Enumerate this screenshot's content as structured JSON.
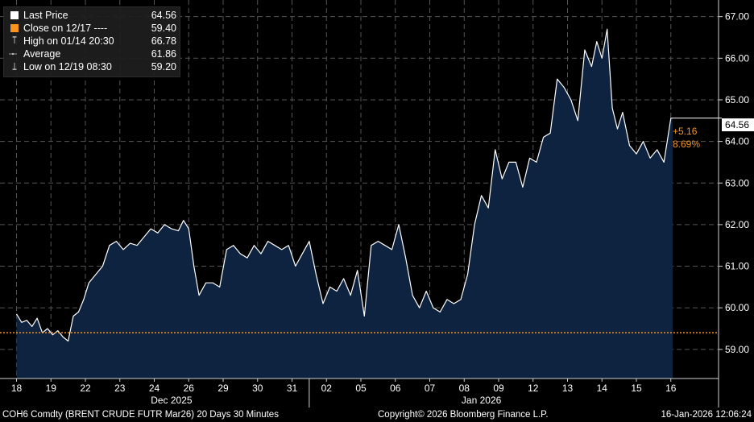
{
  "legend": {
    "items": [
      {
        "label": "Last Price",
        "value": "64.56",
        "color": "#ffffff",
        "marker": "square"
      },
      {
        "label": "Close on 12/17 ----",
        "value": "59.40",
        "color": "#f7941d",
        "marker": "square"
      },
      {
        "label": "High on 01/14 20:30",
        "value": "66.78",
        "color": "#cfcfcf",
        "marker": "high-bar-icon"
      },
      {
        "label": "Average",
        "value": "61.86",
        "color": "#cfcfcf",
        "marker": "average-line-icon"
      },
      {
        "label": "Low on 12/19 08:30",
        "value": "59.20",
        "color": "#cfcfcf",
        "marker": "low-bar-icon"
      }
    ]
  },
  "annotations": {
    "change": "+5.16",
    "change_pct": "8.69%",
    "last_price_tag": "64.56"
  },
  "footer": {
    "ticker": "COH6 Comdty (BRENT CRUDE FUTR  Mar26) 20 Days 30 Minutes",
    "copyright": "Copyright© 2026 Bloomberg Finance L.P.",
    "timestamp": "16-Jan-2026 12:06:24"
  },
  "chart_data": {
    "type": "area",
    "ylim": [
      58.3,
      67.4
    ],
    "yticks": [
      59,
      60,
      61,
      62,
      63,
      64,
      65,
      66,
      67
    ],
    "x_day_labels": [
      "18",
      "19",
      "22",
      "23",
      "24",
      "26",
      "29",
      "30",
      "31",
      "02",
      "05",
      "06",
      "07",
      "08",
      "09",
      "12",
      "13",
      "14",
      "15",
      "16"
    ],
    "month_labels": [
      {
        "label": "Dec 2025",
        "at_day_index": 4.5
      },
      {
        "label": "Jan 2026",
        "at_day_index": 13.5
      }
    ],
    "reference_close": 59.4,
    "last_price": 64.56,
    "colors": {
      "area": "#0d2340",
      "line": "#ffffff",
      "close": "#f7941d",
      "grid": "#555555"
    },
    "day_index": [
      0,
      0.15,
      0.3,
      0.45,
      0.6,
      0.75,
      0.9,
      1.05,
      1.2,
      1.35,
      1.5,
      1.65,
      1.8,
      1.95,
      2.1,
      2.3,
      2.5,
      2.7,
      2.9,
      3.1,
      3.3,
      3.5,
      3.7,
      3.9,
      4.1,
      4.3,
      4.5,
      4.7,
      4.85,
      5.0,
      5.15,
      5.3,
      5.5,
      5.7,
      5.9,
      6.1,
      6.3,
      6.5,
      6.7,
      6.9,
      7.1,
      7.3,
      7.5,
      7.7,
      7.9,
      8.1,
      8.3,
      8.5,
      8.7,
      8.9,
      9.1,
      9.3,
      9.5,
      9.7,
      9.9,
      10.1,
      10.3,
      10.5,
      10.7,
      10.9,
      11.1,
      11.3,
      11.5,
      11.7,
      11.9,
      12.1,
      12.3,
      12.5,
      12.7,
      12.9,
      13.1,
      13.3,
      13.5,
      13.7,
      13.9,
      14.1,
      14.3,
      14.5,
      14.7,
      14.9,
      15.1,
      15.3,
      15.5,
      15.7,
      15.9,
      16.1,
      16.3,
      16.5,
      16.7,
      16.85,
      17.0,
      17.15,
      17.3,
      17.45,
      17.6,
      17.8,
      18.0,
      18.2,
      18.4,
      18.6,
      18.8,
      19.0,
      19.05
    ],
    "price": [
      59.85,
      59.65,
      59.7,
      59.55,
      59.75,
      59.4,
      59.5,
      59.35,
      59.45,
      59.3,
      59.2,
      59.8,
      59.9,
      60.2,
      60.6,
      60.8,
      61.0,
      61.5,
      61.6,
      61.4,
      61.55,
      61.5,
      61.7,
      61.9,
      61.8,
      62.0,
      61.9,
      61.85,
      62.1,
      61.9,
      61.0,
      60.3,
      60.6,
      60.6,
      60.5,
      61.4,
      61.5,
      61.3,
      61.2,
      61.5,
      61.3,
      61.6,
      61.5,
      61.4,
      61.5,
      61.0,
      61.3,
      61.6,
      60.8,
      60.1,
      60.5,
      60.4,
      60.7,
      60.3,
      60.9,
      59.8,
      61.5,
      61.6,
      61.5,
      61.4,
      62.0,
      61.2,
      60.3,
      60.0,
      60.4,
      60.0,
      59.9,
      60.2,
      60.1,
      60.2,
      60.8,
      62.0,
      62.7,
      62.4,
      63.8,
      63.1,
      63.5,
      63.5,
      62.9,
      63.6,
      63.5,
      64.1,
      64.2,
      65.5,
      65.3,
      65.0,
      64.5,
      66.2,
      65.8,
      66.4,
      66.0,
      66.7,
      64.8,
      64.3,
      64.7,
      63.9,
      63.7,
      64.0,
      63.6,
      63.8,
      63.5,
      64.56,
      64.56
    ]
  }
}
